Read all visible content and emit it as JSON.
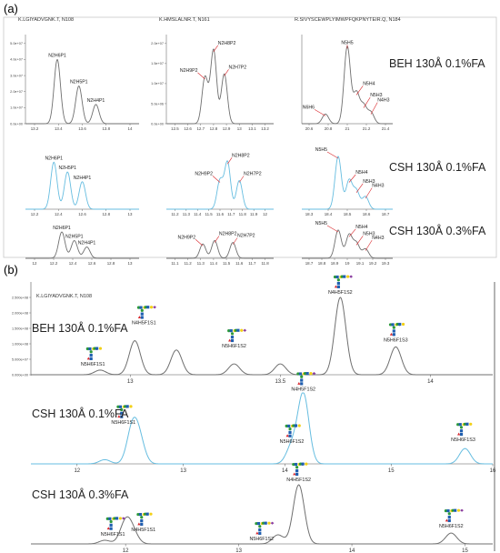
{
  "figure": {
    "panel_a_label": "(a)",
    "panel_b_label": "(b)",
    "colors": {
      "gray": "#6f6f6f",
      "blue": "#66bde0",
      "red": "#d9262b",
      "frame": "#c8c8c8",
      "glycan_blue": "#1f5fb0",
      "glycan_green": "#2d9a3a",
      "glycan_yellow": "#f2d016",
      "glycan_red": "#d9262b"
    }
  },
  "chart_data": [
    {
      "type": "line",
      "panel": "a",
      "columns": [
        {
          "peptide": "K.LGIYADVGNK.T, N108",
          "rows": [
            {
              "condition": "BEH 130Å 0.1%FA",
              "color": "gray",
              "xticks": [
                "13.2",
                "13.4",
                "13.6",
                "13.8",
                "14"
              ],
              "yticks": [
                "0.0e+00",
                "1.0e+07",
                "2.0e+07",
                "3.0e+07",
                "4.0e+07",
                "5.0e+07"
              ],
              "peaks": [
                {
                  "label": "N2H6P1",
                  "x": 0.28,
                  "h": 0.8
                },
                {
                  "label": "N2H5P1",
                  "x": 0.47,
                  "h": 0.47
                },
                {
                  "label": "N2H4P1",
                  "x": 0.62,
                  "h": 0.24
                }
              ]
            },
            {
              "condition": "CSH 130Å 0.1%FA",
              "color": "blue",
              "xticks": [
                "12.2",
                "12.4",
                "12.6",
                "12.8",
                "13"
              ],
              "peaks": [
                {
                  "label": "N2H6P1",
                  "x": 0.25,
                  "h": 0.82
                },
                {
                  "label": "N2H5P1",
                  "x": 0.37,
                  "h": 0.65
                },
                {
                  "label": "N2H4P1",
                  "x": 0.5,
                  "h": 0.48
                }
              ]
            },
            {
              "condition": "CSH 130Å 0.3%FA",
              "color": "gray",
              "xticks": [
                "12",
                "12.2",
                "12.4",
                "12.6",
                "12.8",
                "13"
              ],
              "peaks": [
                {
                  "label": "N2H6P1",
                  "x": 0.32,
                  "h": 0.7
                },
                {
                  "label": "N2H5P1",
                  "x": 0.43,
                  "h": 0.47
                },
                {
                  "label": "N2H4P1",
                  "x": 0.54,
                  "h": 0.3
                }
              ]
            }
          ]
        },
        {
          "peptide": "K.HMSLALNR.T, N161",
          "rows": [
            {
              "condition": "BEH 130Å 0.1%FA",
              "color": "gray",
              "xticks": [
                "12.5",
                "12.6",
                "12.7",
                "12.8",
                "12.9",
                "13",
                "13.1",
                "13.2"
              ],
              "yticks": [
                "0.0e+00",
                "5.0e+06",
                "1.0e+07",
                "1.5e+07",
                "2.0e+07"
              ],
              "peaks": [
                {
                  "label": "N2H9P2",
                  "x": 0.36,
                  "h": 0.58
                },
                {
                  "label": "N2H8P2",
                  "x": 0.44,
                  "h": 0.92
                },
                {
                  "label": "N2H7P2",
                  "x": 0.54,
                  "h": 0.62
                }
              ]
            },
            {
              "condition": "CSH 130Å 0.1%FA",
              "color": "blue",
              "xticks": [
                "11.2",
                "11.3",
                "11.4",
                "11.5",
                "11.6",
                "11.7",
                "11.8",
                "11.9",
                "12"
              ],
              "peaks": [
                {
                  "label": "N2H9P2",
                  "x": 0.5,
                  "h": 0.5
                },
                {
                  "label": "N2H8P2",
                  "x": 0.57,
                  "h": 0.82
                },
                {
                  "label": "N2H7P2",
                  "x": 0.68,
                  "h": 0.5
                }
              ]
            },
            {
              "condition": "CSH 130Å 0.3%FA",
              "color": "gray",
              "xticks": [
                "11.1",
                "11.2",
                "11.3",
                "11.4",
                "11.5",
                "11.6",
                "11.7",
                "11.8"
              ],
              "peaks": [
                {
                  "label": "N2H9P2",
                  "x": 0.34,
                  "h": 0.38
                },
                {
                  "label": "N2H8P2",
                  "x": 0.45,
                  "h": 0.47
                },
                {
                  "label": "N2H7P2",
                  "x": 0.62,
                  "h": 0.42
                }
              ]
            }
          ]
        },
        {
          "peptide": "R.SIVYSCEWPLYIMWPFQKPNYTEIR.Q, N184",
          "rows": [
            {
              "condition": "BEH 130Å 0.1%FA",
              "color": "gray",
              "xticks": [
                "20.6",
                "20.8",
                "21",
                "21.2",
                "21.4"
              ],
              "peaks": [
                {
                  "label": "N6H6",
                  "x": 0.26,
                  "h": 0.12
                },
                {
                  "label": "N5H5",
                  "x": 0.5,
                  "h": 0.96
                },
                {
                  "label": "N5H4",
                  "x": 0.6,
                  "h": 0.38
                },
                {
                  "label": "N5H3",
                  "x": 0.68,
                  "h": 0.22
                },
                {
                  "label": "N4H3",
                  "x": 0.76,
                  "h": 0.14
                }
              ]
            },
            {
              "condition": "CSH 130Å 0.1%FA",
              "color": "blue",
              "xticks": [
                "18.3",
                "18.4",
                "18.5",
                "18.6",
                "18.7"
              ],
              "peaks": [
                {
                  "label": "N5H5",
                  "x": 0.4,
                  "h": 0.92
                },
                {
                  "label": "N5H4",
                  "x": 0.52,
                  "h": 0.5
                },
                {
                  "label": "N5H3",
                  "x": 0.6,
                  "h": 0.32
                },
                {
                  "label": "N4H3",
                  "x": 0.7,
                  "h": 0.22
                }
              ]
            },
            {
              "condition": "CSH 130Å 0.3%FA",
              "color": "gray",
              "xticks": [
                "18.7",
                "18.8",
                "18.9",
                "19",
                "19.1",
                "19.2",
                "19.3"
              ],
              "peaks": [
                {
                  "label": "N5H5",
                  "x": 0.4,
                  "h": 0.75
                },
                {
                  "label": "N5H4",
                  "x": 0.52,
                  "h": 0.62
                },
                {
                  "label": "N5H3",
                  "x": 0.6,
                  "h": 0.4
                },
                {
                  "label": "N4H3",
                  "x": 0.7,
                  "h": 0.25
                }
              ]
            }
          ]
        }
      ]
    },
    {
      "type": "line",
      "panel": "b",
      "peptide": "K.LGIYADVGNK.T, N108",
      "rows": [
        {
          "condition": "BEH 130Å 0.1%FA",
          "color": "gray",
          "xticks": [
            {
              "v": "13",
              "x": 0.215
            },
            {
              "v": "13.5",
              "x": 0.54
            },
            {
              "v": "14",
              "x": 0.865
            }
          ],
          "yticks": [
            "0.000e+00",
            "5.000e+07",
            "1.000e+08",
            "1.500e+08",
            "2.000e+08",
            "2.500e+08"
          ],
          "peaks": [
            {
              "x": 0.15,
              "h": 0.06,
              "label": "N5H6F1S1"
            },
            {
              "x": 0.225,
              "h": 0.44,
              "label": "N4H5F1S1"
            },
            {
              "x": 0.315,
              "h": 0.32
            },
            {
              "x": 0.44,
              "h": 0.14,
              "label": "N5H6F1S2"
            },
            {
              "x": 0.54,
              "h": 0.14
            },
            {
              "x": 0.67,
              "h": 1.0,
              "label": "N4H5F1S2"
            },
            {
              "x": 0.79,
              "h": 0.36,
              "label": "N5H6F1S3"
            }
          ]
        },
        {
          "condition": "CSH 130Å 0.1%FA",
          "color": "blue",
          "xticks": [
            {
              "v": "12",
              "x": 0.1
            },
            {
              "v": "13",
              "x": 0.33
            },
            {
              "v": "14",
              "x": 0.55
            },
            {
              "v": "15",
              "x": 0.78
            },
            {
              "v": "16",
              "x": 1.0
            }
          ],
          "peaks": [
            {
              "x": 0.16,
              "h": 0.06
            },
            {
              "x": 0.22,
              "h": 0.5,
              "label": "N5H6F1S1"
            },
            {
              "x": 0.235,
              "h": 0.3
            },
            {
              "x": 0.565,
              "h": 0.25,
              "label": "N5H6F1S2"
            },
            {
              "x": 0.59,
              "h": 1.0,
              "label": "N4H5F1S2"
            },
            {
              "x": 0.94,
              "h": 0.22,
              "label": "N5H6F1S3"
            }
          ]
        },
        {
          "condition": "CSH 130Å 0.3%FA",
          "color": "gray",
          "xticks": [
            {
              "v": "12",
              "x": 0.205
            },
            {
              "v": "13",
              "x": 0.45
            },
            {
              "v": "14",
              "x": 0.695
            },
            {
              "v": "15",
              "x": 0.94
            }
          ],
          "peaks": [
            {
              "x": 0.16,
              "h": 0.06
            },
            {
              "x": 0.205,
              "h": 0.35,
              "label": "N5H6F1S1"
            },
            {
              "x": 0.22,
              "h": 0.18,
              "label": "N4H5F1S1"
            },
            {
              "x": 0.535,
              "h": 0.15,
              "label": "N5H6F1S2"
            },
            {
              "x": 0.58,
              "h": 0.98,
              "label": "N4H5F1S2"
            },
            {
              "x": 0.91,
              "h": 0.18,
              "label": "N5H6F1S2"
            }
          ]
        }
      ]
    }
  ]
}
